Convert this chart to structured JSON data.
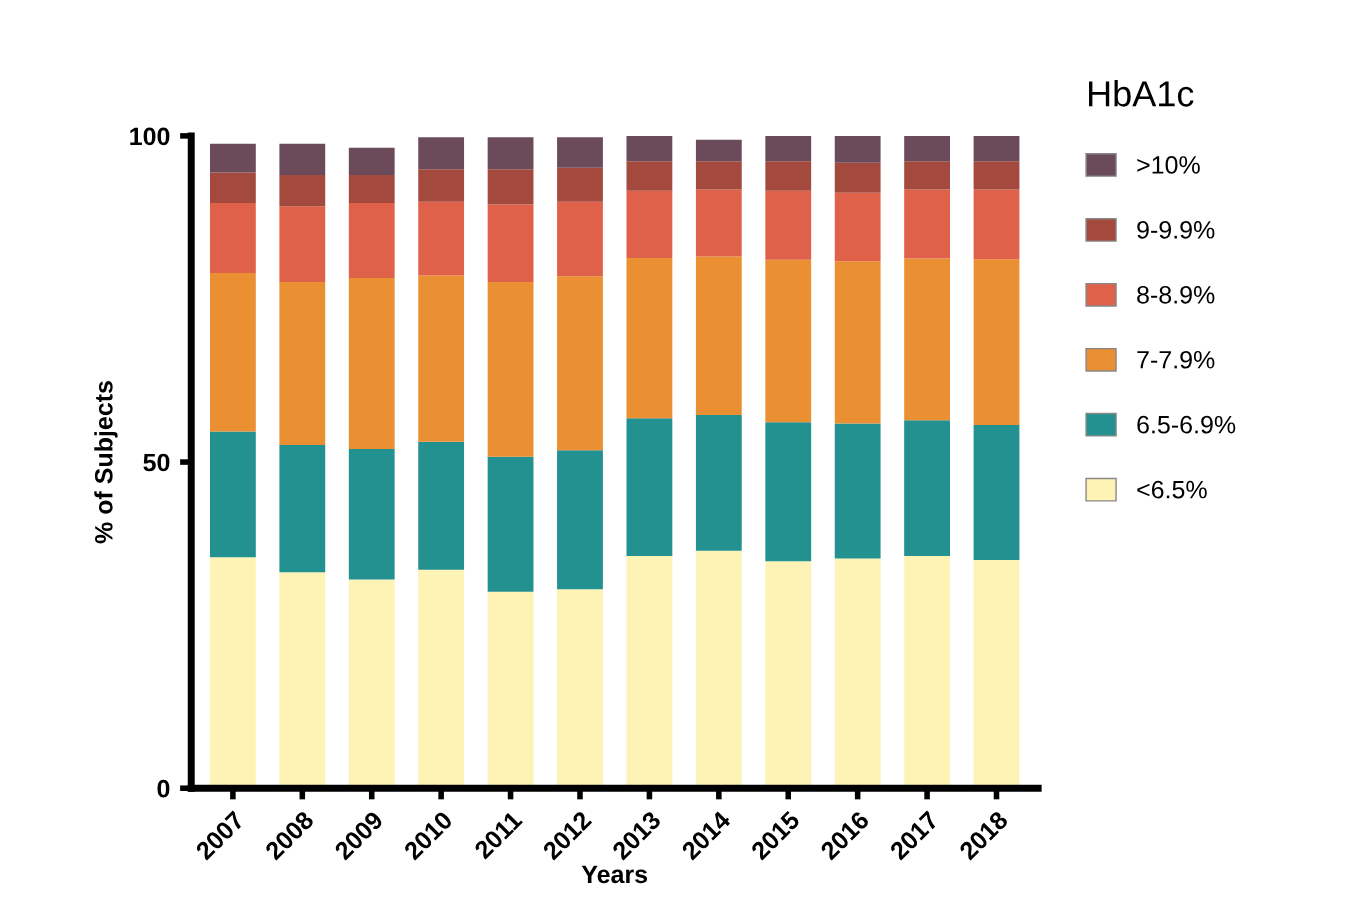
{
  "chart_data": {
    "type": "bar",
    "stacked": true,
    "xlabel": "Years",
    "ylabel": "% of Subjects",
    "legend_title": "HbA1c",
    "legend": "right",
    "grid": false,
    "categories": [
      "2007",
      "2008",
      "2009",
      "2010",
      "2011",
      "2012",
      "2013",
      "2014",
      "2015",
      "2016",
      "2017",
      "2018"
    ],
    "ylim": [
      0,
      100
    ],
    "yticks": [
      0,
      50,
      100
    ],
    "series": [
      {
        "name": "<6.5%",
        "color": "#fdf3b5",
        "values": [
          35.4,
          33.1,
          32.0,
          33.5,
          30.1,
          30.5,
          35.6,
          36.4,
          34.8,
          35.2,
          35.6,
          35.0
        ]
      },
      {
        "name": "6.5-6.9%",
        "color": "#23918f",
        "values": [
          19.3,
          19.5,
          20.0,
          19.6,
          20.7,
          21.3,
          21.1,
          20.8,
          21.3,
          20.7,
          20.8,
          20.7
        ]
      },
      {
        "name": "7-7.9%",
        "color": "#ea8f32",
        "values": [
          24.3,
          25.0,
          26.2,
          25.5,
          26.8,
          26.7,
          24.6,
          24.3,
          24.9,
          24.9,
          24.8,
          25.4
        ]
      },
      {
        "name": "8-8.9%",
        "color": "#e0614a",
        "values": [
          10.7,
          11.6,
          11.5,
          11.3,
          11.9,
          11.4,
          10.3,
          10.3,
          10.6,
          10.5,
          10.6,
          10.7
        ]
      },
      {
        "name": "9-9.9%",
        "color": "#a3493d",
        "values": [
          4.7,
          4.8,
          4.3,
          5.0,
          5.4,
          5.2,
          4.5,
          4.3,
          4.5,
          4.6,
          4.3,
          4.3
        ]
      },
      {
        "name": ">10%",
        "color": "#6b4a5a",
        "values": [
          4.4,
          4.8,
          4.2,
          4.9,
          4.9,
          4.7,
          3.9,
          3.3,
          3.9,
          4.1,
          3.9,
          3.9
        ]
      }
    ]
  }
}
